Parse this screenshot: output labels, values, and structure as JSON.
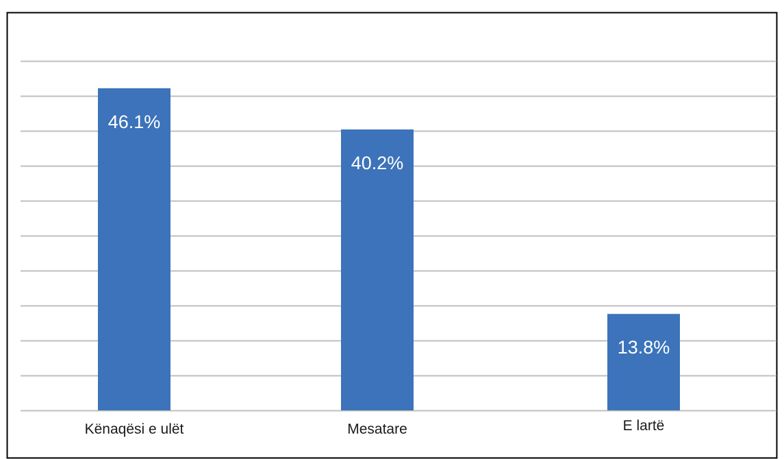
{
  "chart_data": {
    "type": "bar",
    "categories": [
      "Kënaqësi e ulët",
      "Mesatare",
      "E lartë"
    ],
    "values": [
      46.1,
      40.2,
      13.8
    ],
    "value_labels": [
      "46.1%",
      "40.2%",
      "13.8%"
    ],
    "ylim": [
      0,
      50
    ],
    "grid": true,
    "title": "",
    "xlabel": "",
    "ylabel": "",
    "bar_color": "#3C73BA",
    "gridline_color": "#BFBFBF",
    "border_color": "#000000"
  }
}
